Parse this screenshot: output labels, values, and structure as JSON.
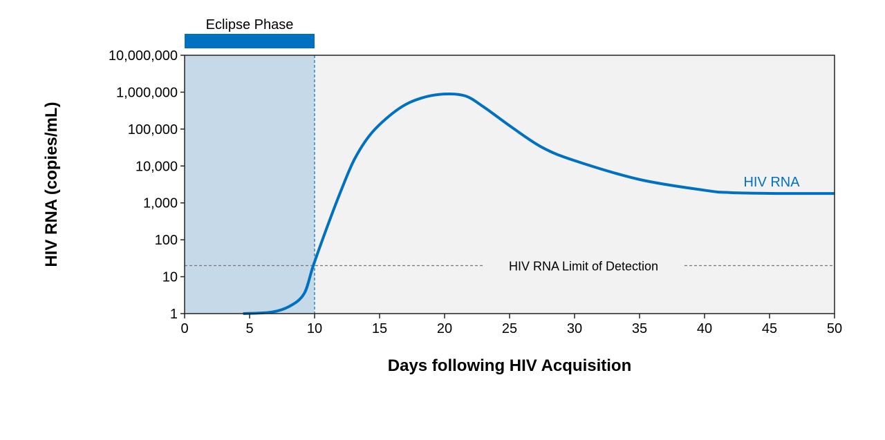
{
  "chart_data": {
    "type": "line",
    "title": "",
    "xlabel": "Days following HIV Acquisition",
    "ylabel": "HIV RNA (copies/mL)",
    "xlim": [
      0,
      50
    ],
    "ylim": [
      1,
      10000000
    ],
    "yscale": "log",
    "grid": false,
    "xticks": [
      "0",
      "5",
      "10",
      "15",
      "20",
      "25",
      "30",
      "35",
      "40",
      "45",
      "50"
    ],
    "xtick_values": [
      0,
      5,
      10,
      15,
      20,
      25,
      30,
      35,
      40,
      45,
      50
    ],
    "yticks": [
      "1",
      "10",
      "100",
      "1,000",
      "10,000",
      "100,000",
      "1,000,000",
      "10,000,000"
    ],
    "ytick_values": [
      1,
      10,
      100,
      1000,
      10000,
      100000,
      1000000,
      10000000
    ],
    "series": [
      {
        "name": "HIV RNA",
        "color": "#0070c0",
        "x": [
          4.5,
          6.7,
          8.1,
          9.2,
          9.9,
          11,
          12,
          13.1,
          14.5,
          16.5,
          18.2,
          20,
          21.6,
          23,
          25.2,
          27.5,
          30,
          35,
          40,
          42,
          46,
          50
        ],
        "y": [
          1,
          1.1,
          1.6,
          3.5,
          20,
          240,
          2000,
          16000,
          87000,
          360000,
          690000,
          890000,
          790000,
          400000,
          110000,
          32000,
          14000,
          4300,
          2200,
          1900,
          1800,
          1800
        ]
      }
    ],
    "annotations": {
      "series_label": "HIV RNA",
      "eclipse_label": "Eclipse Phase",
      "eclipse_range": [
        0,
        10
      ],
      "lod_label": "HIV RNA Limit of Detection",
      "lod_value": 20
    },
    "colors": {
      "plot_bg": "#f2f2f2",
      "eclipse_bg": "#c5d9e8",
      "accent": "#0070c0"
    }
  }
}
